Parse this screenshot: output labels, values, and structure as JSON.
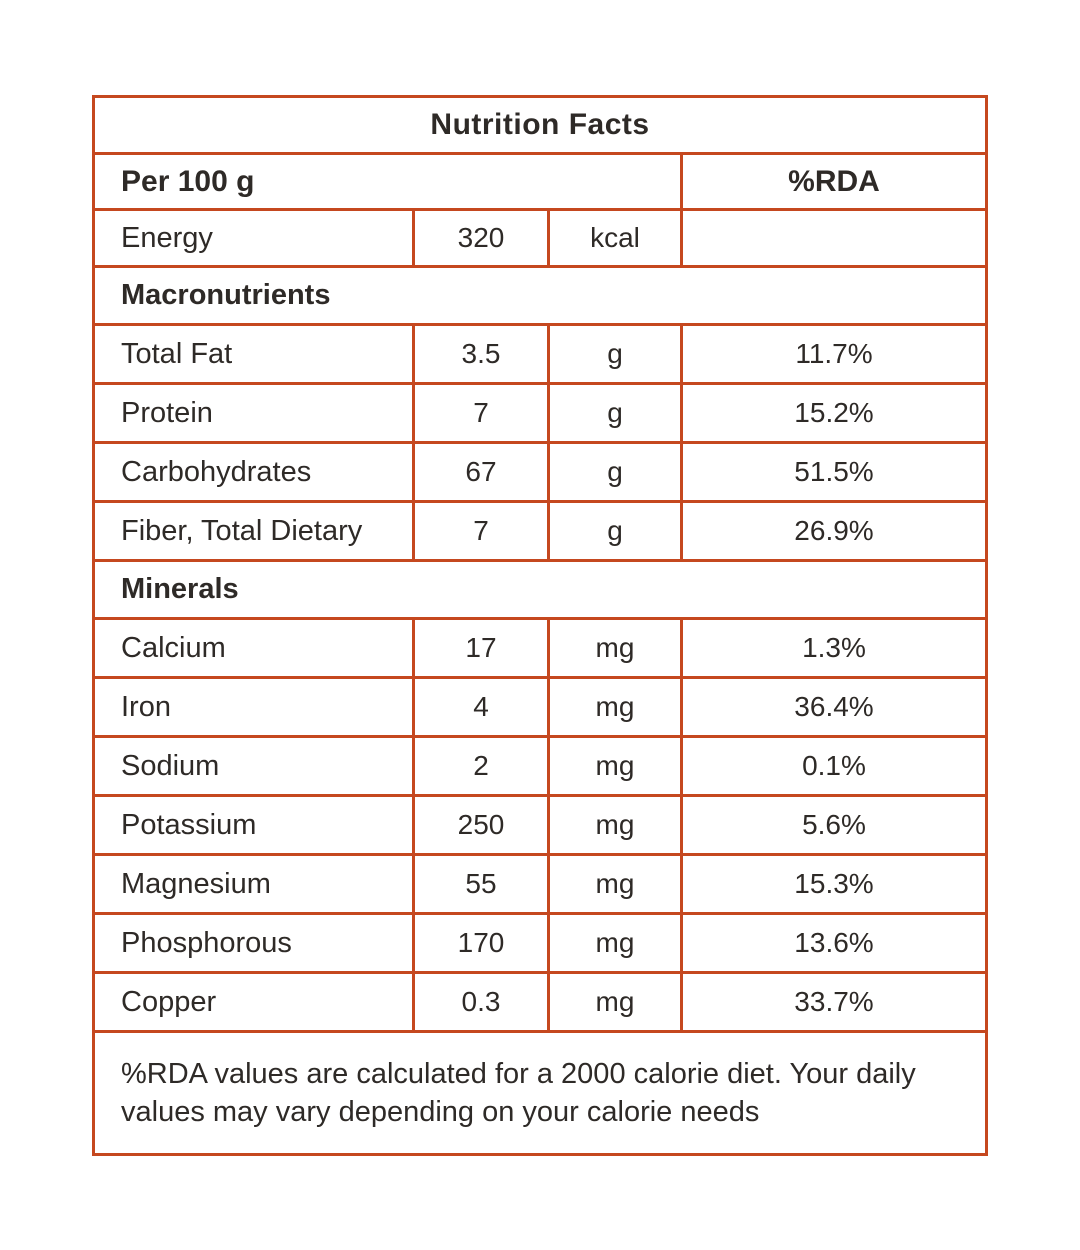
{
  "colors": {
    "accent": "#c5481f",
    "text": "#2e2a27",
    "background": "#ffffff"
  },
  "table": {
    "title": "Nutrition Facts",
    "header": {
      "serving": "Per 100 g",
      "rda": "%RDA"
    },
    "energy": {
      "label": "Energy",
      "value": "320",
      "unit": "kcal",
      "rda": ""
    },
    "sections": [
      {
        "name": "Macronutrients",
        "rows": [
          {
            "label": "Total Fat",
            "value": "3.5",
            "unit": "g",
            "rda": "11.7%"
          },
          {
            "label": "Protein",
            "value": "7",
            "unit": "g",
            "rda": "15.2%"
          },
          {
            "label": "Carbohydrates",
            "value": "67",
            "unit": "g",
            "rda": "51.5%"
          },
          {
            "label": "Fiber, Total Dietary",
            "value": "7",
            "unit": "g",
            "rda": "26.9%"
          }
        ]
      },
      {
        "name": "Minerals",
        "rows": [
          {
            "label": "Calcium",
            "value": "17",
            "unit": "mg",
            "rda": "1.3%"
          },
          {
            "label": "Iron",
            "value": "4",
            "unit": "mg",
            "rda": "36.4%"
          },
          {
            "label": "Sodium",
            "value": "2",
            "unit": "mg",
            "rda": "0.1%"
          },
          {
            "label": "Potassium",
            "value": "250",
            "unit": "mg",
            "rda": "5.6%"
          },
          {
            "label": "Magnesium",
            "value": "55",
            "unit": "mg",
            "rda": "15.3%"
          },
          {
            "label": "Phosphorous",
            "value": "170",
            "unit": "mg",
            "rda": "13.6%"
          },
          {
            "label": "Copper",
            "value": "0.3",
            "unit": "mg",
            "rda": "33.7%"
          }
        ]
      }
    ],
    "footnote": "%RDA values are calculated for a 2000 calorie diet. Your daily values may vary depending on your calorie needs"
  }
}
